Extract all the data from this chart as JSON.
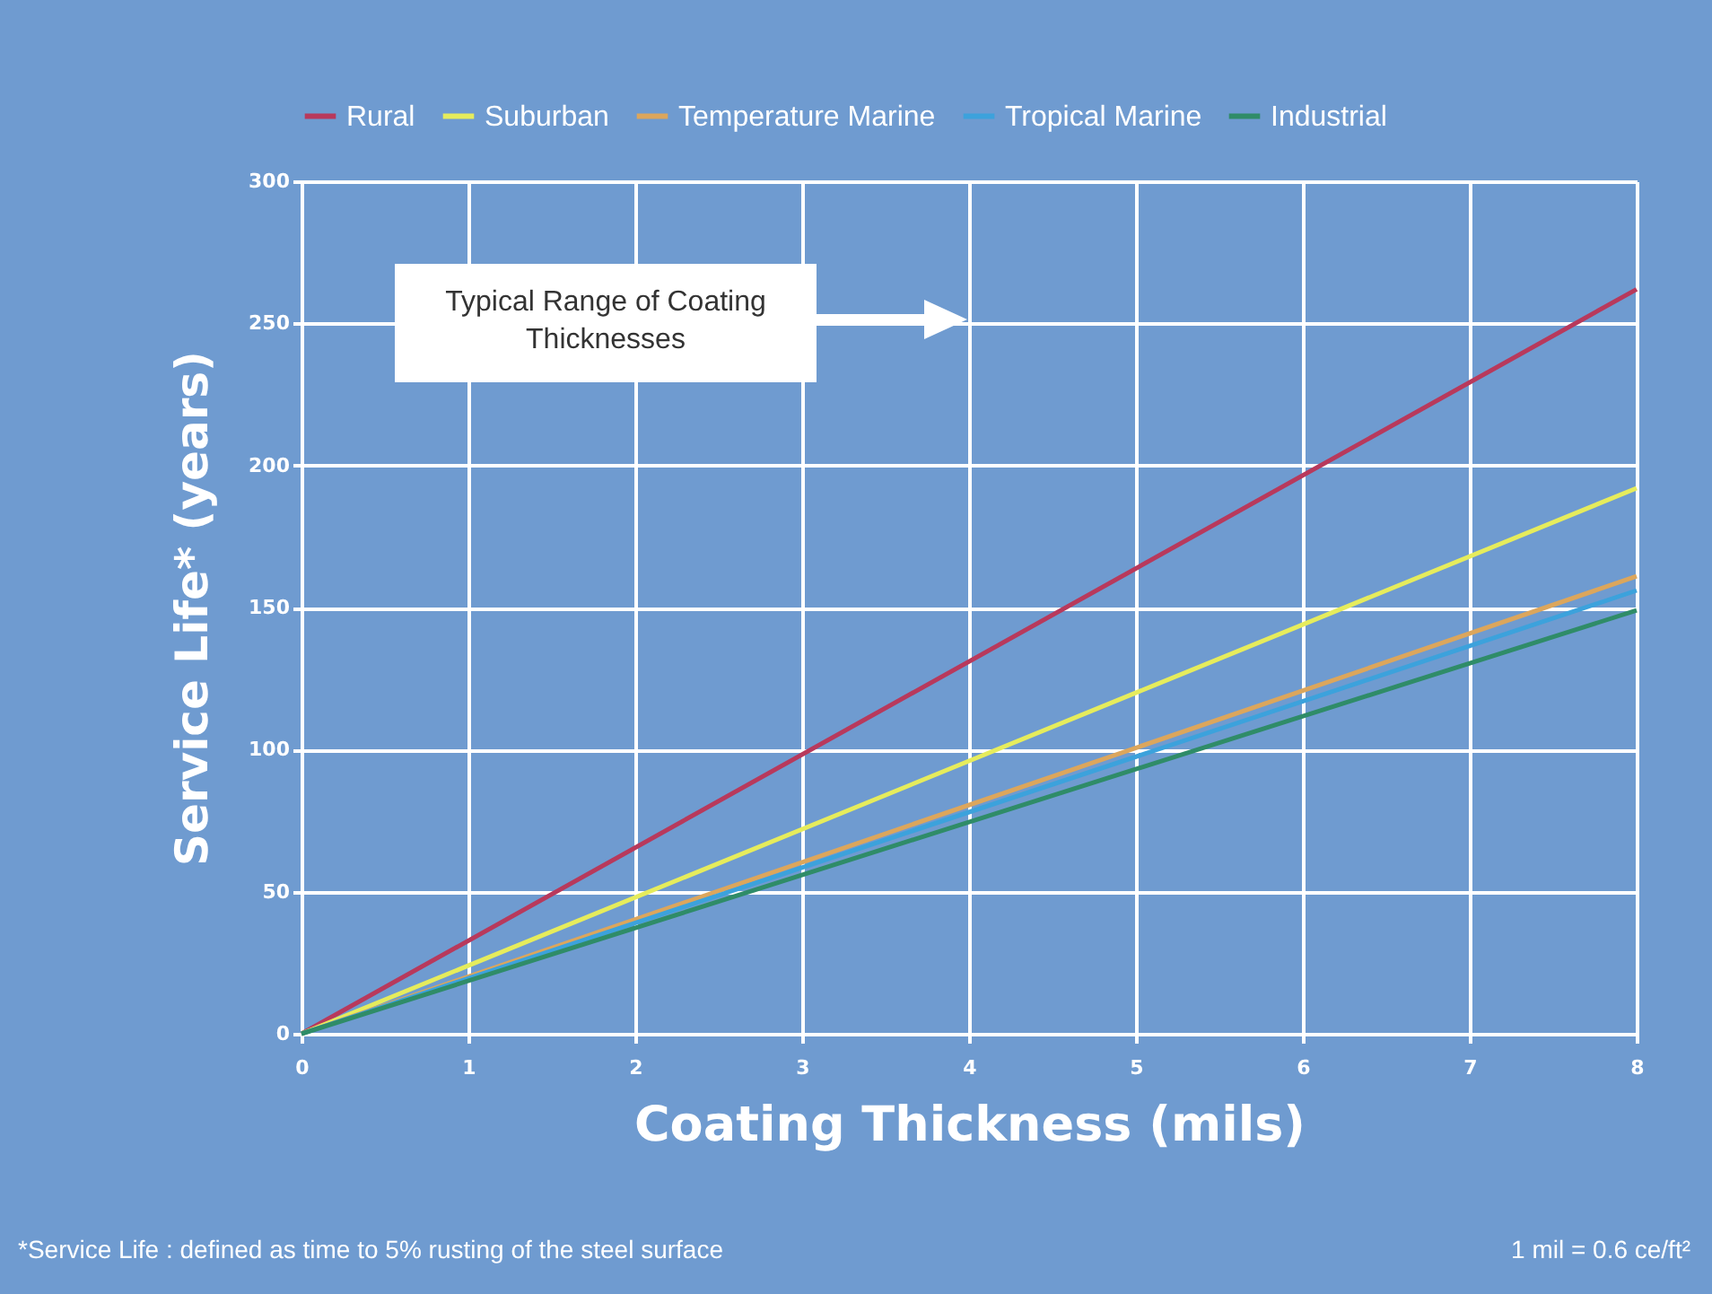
{
  "chart_data": {
    "type": "line",
    "xlabel": "Coating Thickness (mils)",
    "ylabel": "Service Life* (years)",
    "x": [
      0,
      8
    ],
    "series": [
      {
        "name": "Rural",
        "color": "#b8395c",
        "values": [
          0,
          262
        ]
      },
      {
        "name": "Suburban",
        "color": "#e6ec5c",
        "values": [
          0,
          192
        ]
      },
      {
        "name": "Temperature Marine",
        "color": "#dca65c",
        "values": [
          0,
          161
        ]
      },
      {
        "name": "Tropical Marine",
        "color": "#3ca2dc",
        "values": [
          0,
          156
        ]
      },
      {
        "name": "Industrial",
        "color": "#2f8c68",
        "values": [
          0,
          149
        ]
      }
    ],
    "xlim": [
      0,
      8
    ],
    "xticks": [
      0,
      1,
      2,
      3,
      4,
      5,
      6,
      7,
      8
    ],
    "ylim": [
      0,
      300
    ],
    "yticks": [
      0,
      50,
      100,
      150,
      200,
      250,
      300
    ],
    "grid": true,
    "legend": "top",
    "marker": "none",
    "line_style": "solid",
    "annotations": [
      "Typical Range of Coating Thicknesses",
      "*Service Life : defined as time to 5% rusting of the steel surface",
      "1 mil = 0.6 ce/ft²"
    ]
  }
}
